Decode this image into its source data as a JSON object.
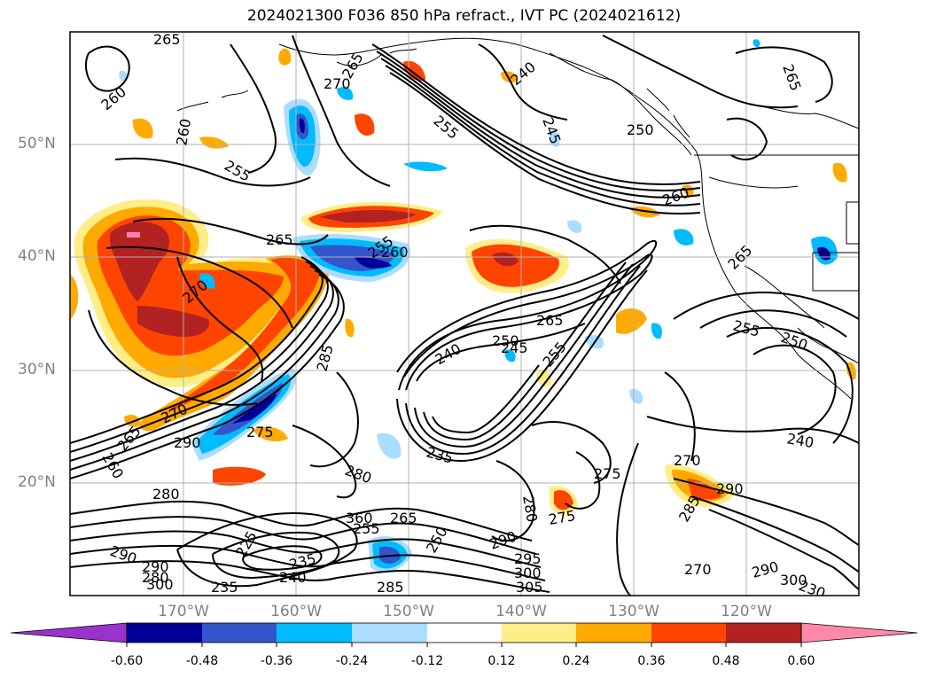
{
  "title": "2024021300 F036 850 hPa refract., IVT PC (2024021612)",
  "lat_labels": [
    "50°N",
    "40°N",
    "30°N",
    "20°N"
  ],
  "lon_labels": [
    "170°W",
    "160°W",
    "150°W",
    "140°W",
    "130°W",
    "120°W"
  ],
  "colorbar": {
    "ticks": [
      "-0.60",
      "-0.48",
      "-0.36",
      "-0.24",
      "-0.12",
      "0.12",
      "0.24",
      "0.36",
      "0.48",
      "0.60"
    ],
    "colors": [
      "#9933cc",
      "#000099",
      "#3355cc",
      "#00bbff",
      "#aaddff",
      "#ffffff",
      "#ffee88",
      "#ffaa00",
      "#ff4400",
      "#b22222",
      "#ff88aa"
    ]
  },
  "contour_labels": [
    "265",
    "260",
    "270",
    "265",
    "240",
    "245",
    "255",
    "260",
    "250",
    "255",
    "265",
    "265",
    "255",
    "260",
    "265",
    "260",
    "270",
    "255",
    "250",
    "240",
    "245",
    "250",
    "265",
    "255",
    "285",
    "270",
    "290",
    "275",
    "265",
    "280",
    "240",
    "235",
    "260",
    "270",
    "275",
    "280",
    "280",
    "290",
    "300",
    "275",
    "290",
    "280",
    "290",
    "295",
    "300",
    "305",
    "285",
    "290",
    "270",
    "360",
    "265",
    "255",
    "235",
    "240",
    "225",
    "250",
    "285",
    "290",
    "300",
    "230",
    "235"
  ]
}
